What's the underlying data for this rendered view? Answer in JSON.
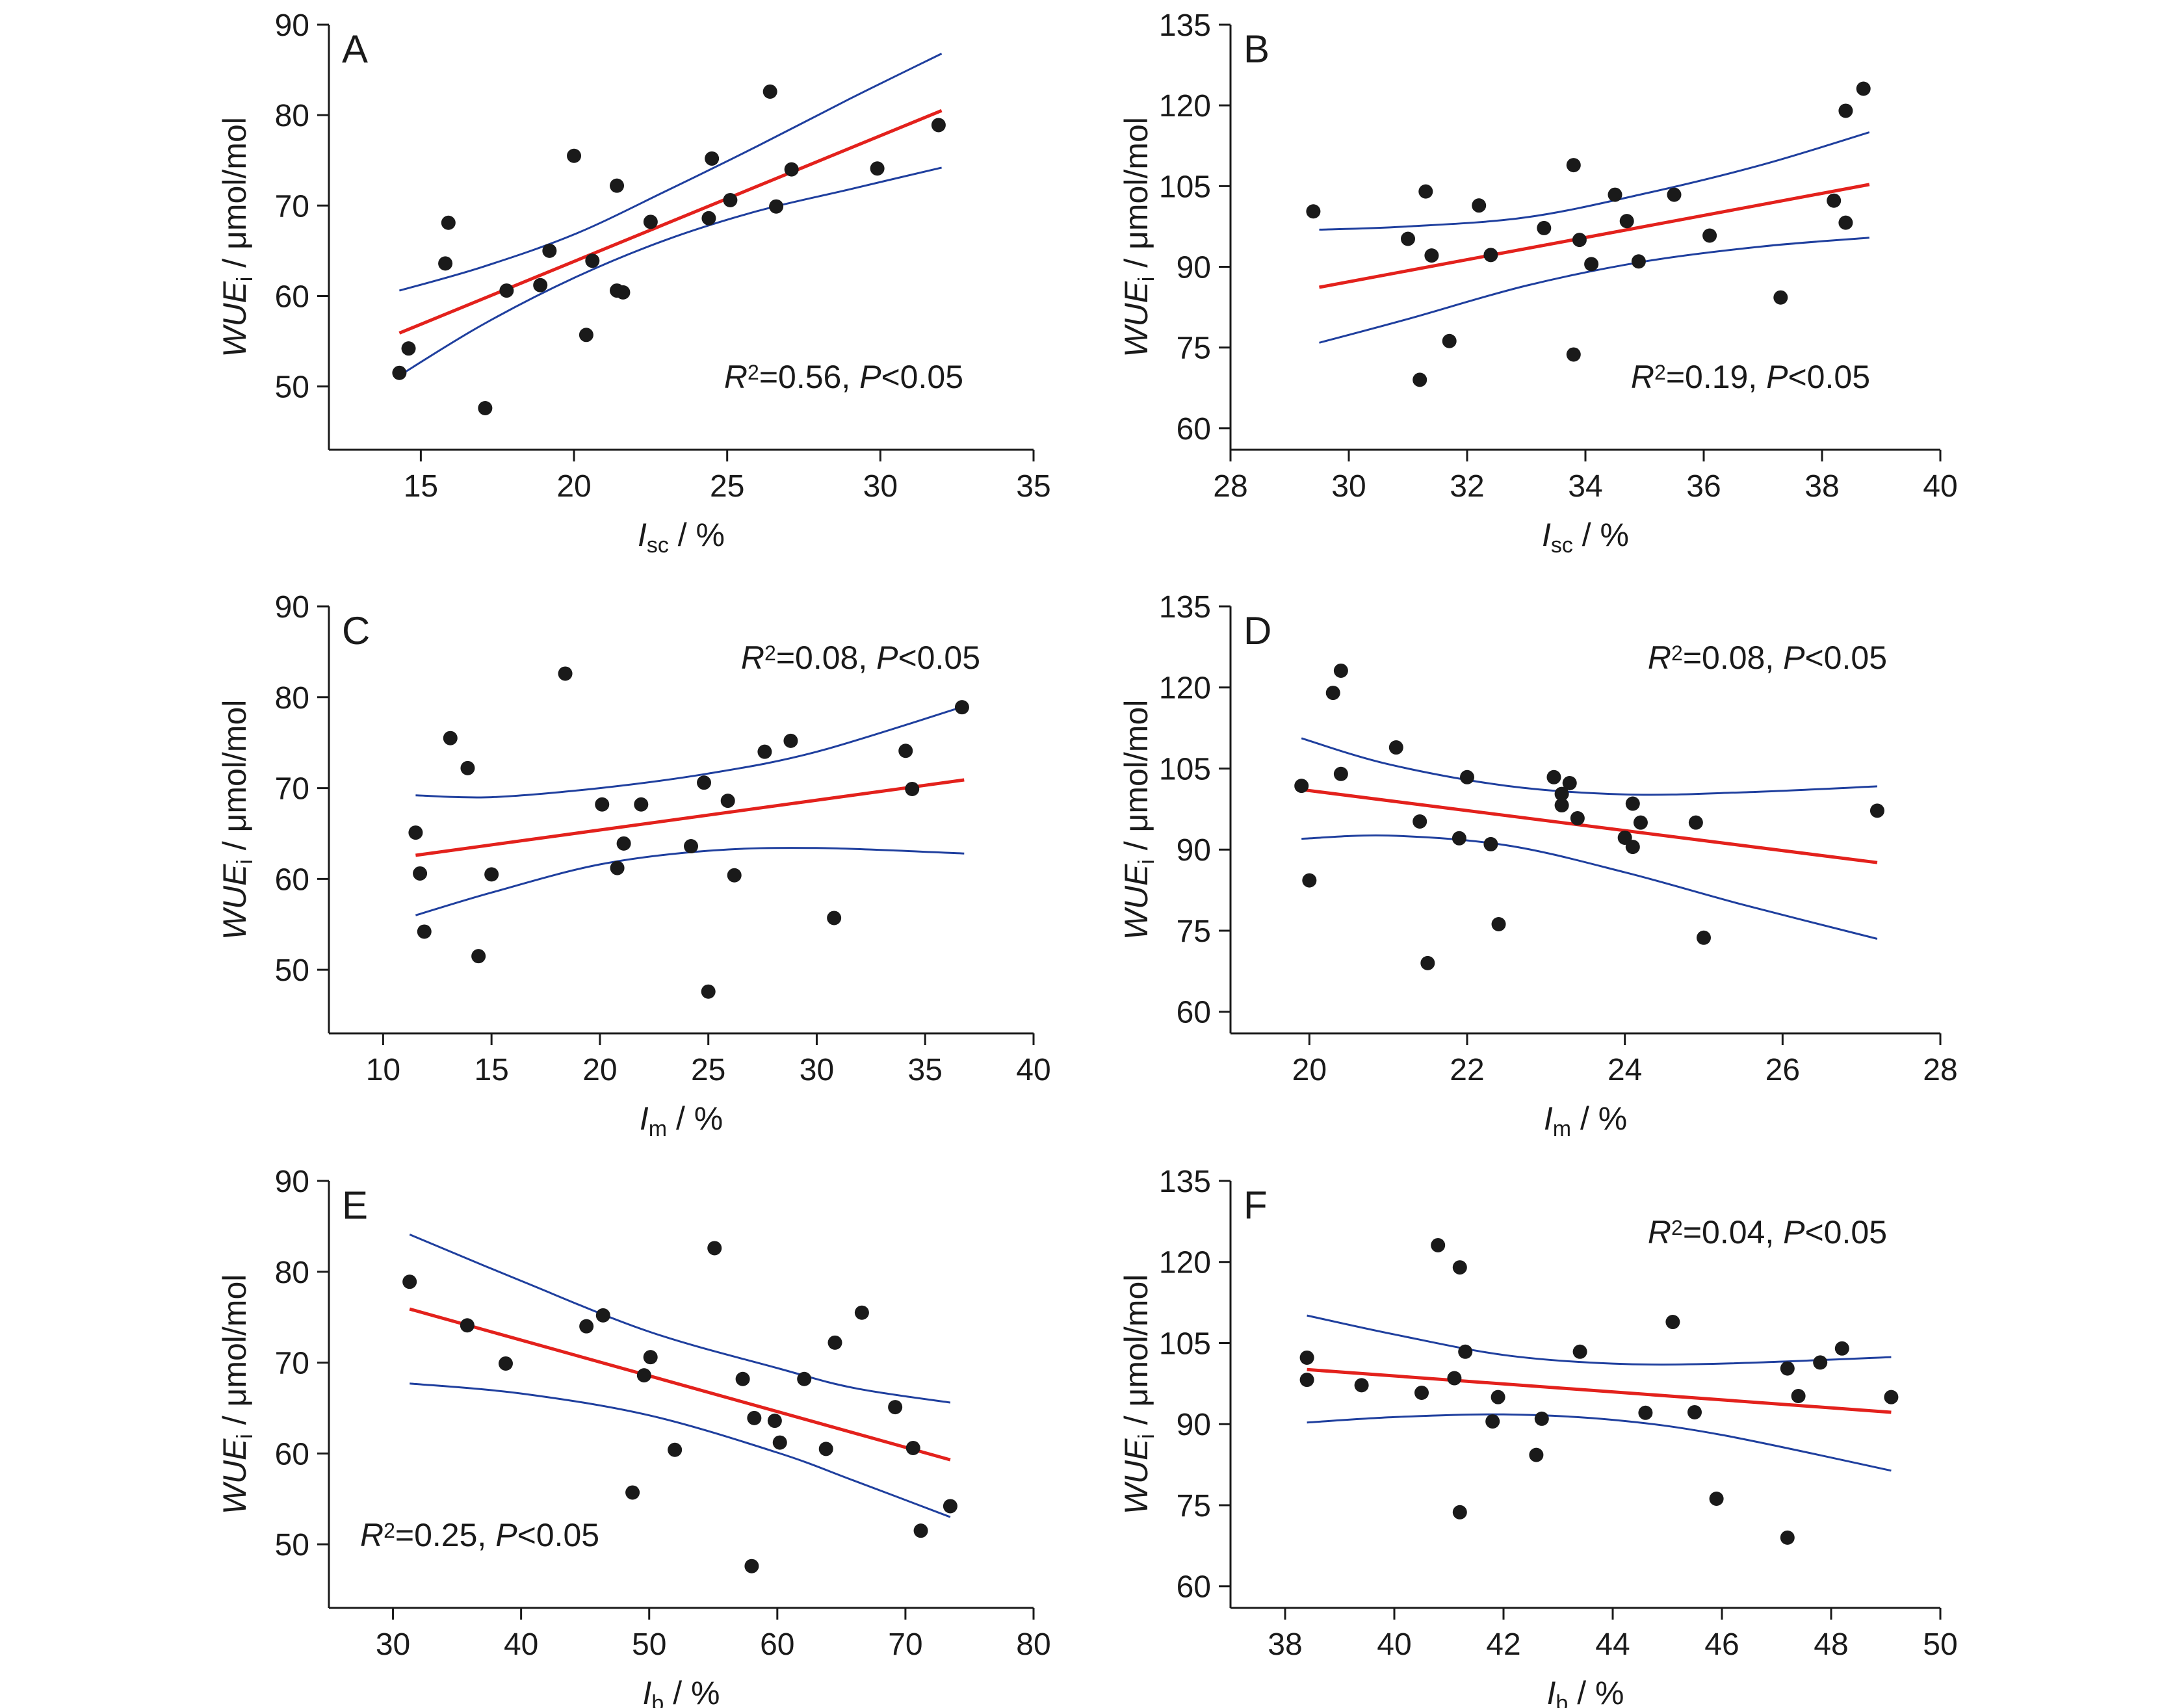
{
  "style": {
    "point_color": "#1a1a1a",
    "fit_color": "#e3211c",
    "ci_color": "#1f3f9e",
    "axis_color": "#1a1a1a"
  },
  "ylabel_main": "WUE",
  "ylabel_sub": "i",
  "ylabel_unit": " / μmol/mol",
  "xlabel_unit": " / %",
  "chart_data": [
    {
      "type": "scatter",
      "panel": "A",
      "xlabel_main": "I",
      "xlabel_sub": "sc",
      "xlim": [
        12,
        35
      ],
      "ylim": [
        43,
        90
      ],
      "xticks": [
        15,
        20,
        25,
        30,
        35
      ],
      "yticks": [
        50,
        60,
        70,
        80,
        90
      ],
      "stat": {
        "r2_label": "R",
        "r2_sup": "2",
        "r2_value": "=0.56, ",
        "p_label": "P",
        "p_value": "<0.05",
        "position": "bottom-right"
      },
      "points": [
        [
          14.3,
          51.5
        ],
        [
          14.6,
          54.2
        ],
        [
          15.8,
          63.6
        ],
        [
          15.9,
          68.1
        ],
        [
          17.1,
          47.6
        ],
        [
          17.8,
          60.6
        ],
        [
          18.9,
          61.2
        ],
        [
          19.2,
          65.0
        ],
        [
          20.0,
          75.5
        ],
        [
          20.4,
          55.7
        ],
        [
          20.6,
          63.9
        ],
        [
          21.4,
          72.2
        ],
        [
          21.4,
          60.6
        ],
        [
          21.6,
          60.4
        ],
        [
          22.5,
          68.2
        ],
        [
          24.4,
          68.6
        ],
        [
          24.5,
          75.2
        ],
        [
          25.1,
          70.6
        ],
        [
          26.4,
          82.6
        ],
        [
          26.6,
          69.9
        ],
        [
          27.1,
          74.0
        ],
        [
          29.9,
          74.1
        ],
        [
          31.9,
          78.9
        ]
      ],
      "fit": [
        [
          14.3,
          55.9
        ],
        [
          32.0,
          80.5
        ]
      ],
      "ci_upper": [
        [
          14.3,
          60.6
        ],
        [
          17.0,
          63.2
        ],
        [
          20.0,
          66.8
        ],
        [
          23.0,
          71.6
        ],
        [
          26.0,
          76.6
        ],
        [
          29.0,
          81.8
        ],
        [
          32.0,
          86.8
        ]
      ],
      "ci_lower": [
        [
          14.3,
          51.2
        ],
        [
          17.0,
          56.8
        ],
        [
          20.0,
          62.0
        ],
        [
          23.0,
          66.2
        ],
        [
          26.0,
          69.4
        ],
        [
          29.0,
          71.8
        ],
        [
          32.0,
          74.2
        ]
      ]
    },
    {
      "type": "scatter",
      "panel": "B",
      "xlabel_main": "I",
      "xlabel_sub": "sc",
      "xlim": [
        28,
        40
      ],
      "ylim": [
        56,
        135
      ],
      "xticks": [
        28,
        30,
        32,
        34,
        36,
        38,
        40
      ],
      "yticks": [
        60,
        75,
        90,
        105,
        120,
        135
      ],
      "stat": {
        "r2_label": "R",
        "r2_sup": "2",
        "r2_value": "=0.19, ",
        "p_label": "P",
        "p_value": "<0.05",
        "position": "bottom-right"
      },
      "points": [
        [
          29.4,
          100.3
        ],
        [
          31.0,
          95.2
        ],
        [
          31.2,
          69.0
        ],
        [
          31.3,
          104.0
        ],
        [
          31.4,
          92.1
        ],
        [
          31.7,
          76.2
        ],
        [
          32.2,
          101.4
        ],
        [
          32.4,
          92.2
        ],
        [
          33.3,
          97.2
        ],
        [
          33.8,
          108.9
        ],
        [
          33.8,
          73.7
        ],
        [
          33.9,
          95.0
        ],
        [
          34.1,
          90.5
        ],
        [
          34.5,
          103.4
        ],
        [
          34.7,
          98.5
        ],
        [
          34.9,
          91.0
        ],
        [
          35.5,
          103.4
        ],
        [
          36.1,
          95.8
        ],
        [
          37.3,
          84.3
        ],
        [
          38.2,
          102.3
        ],
        [
          38.4,
          119.0
        ],
        [
          38.4,
          98.2
        ],
        [
          38.7,
          123.1
        ]
      ],
      "fit": [
        [
          29.5,
          86.2
        ],
        [
          38.8,
          105.3
        ]
      ],
      "ci_upper": [
        [
          29.5,
          96.9
        ],
        [
          31.0,
          97.5
        ],
        [
          33.0,
          99.2
        ],
        [
          35.0,
          103.6
        ],
        [
          37.0,
          109.0
        ],
        [
          38.8,
          115.0
        ]
      ],
      "ci_lower": [
        [
          29.5,
          75.9
        ],
        [
          31.0,
          80.3
        ],
        [
          33.0,
          86.5
        ],
        [
          35.0,
          91.0
        ],
        [
          37.0,
          93.8
        ],
        [
          38.8,
          95.4
        ]
      ]
    },
    {
      "type": "scatter",
      "panel": "C",
      "xlabel_main": "I",
      "xlabel_sub": "m",
      "xlim": [
        7.5,
        40
      ],
      "ylim": [
        43,
        90
      ],
      "xticks": [
        10,
        15,
        20,
        25,
        30,
        35,
        40
      ],
      "yticks": [
        50,
        60,
        70,
        80,
        90
      ],
      "stat": {
        "r2_label": "R",
        "r2_sup": "2",
        "r2_value": "=0.08, ",
        "p_label": "P",
        "p_value": "<0.05",
        "position": "top-right"
      },
      "points": [
        [
          11.5,
          65.1
        ],
        [
          11.7,
          60.6
        ],
        [
          11.9,
          54.2
        ],
        [
          13.1,
          75.5
        ],
        [
          13.9,
          72.2
        ],
        [
          14.4,
          51.5
        ],
        [
          15.0,
          60.5
        ],
        [
          18.4,
          82.6
        ],
        [
          20.1,
          68.2
        ],
        [
          20.8,
          61.2
        ],
        [
          21.1,
          63.9
        ],
        [
          21.9,
          68.2
        ],
        [
          24.2,
          63.6
        ],
        [
          24.8,
          70.6
        ],
        [
          25.0,
          47.6
        ],
        [
          25.9,
          68.6
        ],
        [
          26.2,
          60.4
        ],
        [
          27.6,
          74.0
        ],
        [
          28.8,
          75.2
        ],
        [
          30.8,
          55.7
        ],
        [
          34.1,
          74.1
        ],
        [
          34.4,
          69.9
        ],
        [
          36.7,
          78.9
        ]
      ],
      "fit": [
        [
          11.5,
          62.6
        ],
        [
          36.8,
          70.9
        ]
      ],
      "ci_upper": [
        [
          11.5,
          69.2
        ],
        [
          15.0,
          69.0
        ],
        [
          20.0,
          70.0
        ],
        [
          25.0,
          71.6
        ],
        [
          30.0,
          74.0
        ],
        [
          36.8,
          79.0
        ]
      ],
      "ci_lower": [
        [
          11.5,
          56.0
        ],
        [
          15.0,
          58.5
        ],
        [
          20.0,
          61.6
        ],
        [
          25.0,
          63.1
        ],
        [
          30.0,
          63.4
        ],
        [
          36.8,
          62.8
        ]
      ]
    },
    {
      "type": "scatter",
      "panel": "D",
      "xlabel_main": "I",
      "xlabel_sub": "m",
      "xlim": [
        19,
        28
      ],
      "ylim": [
        56,
        135
      ],
      "xticks": [
        20,
        22,
        24,
        26,
        28
      ],
      "yticks": [
        60,
        75,
        90,
        105,
        120,
        135
      ],
      "stat": {
        "r2_label": "R",
        "r2_sup": "2",
        "r2_value": "=0.08, ",
        "p_label": "P",
        "p_value": "<0.05",
        "position": "top-right"
      },
      "points": [
        [
          19.9,
          101.8
        ],
        [
          20.0,
          84.3
        ],
        [
          20.3,
          119.0
        ],
        [
          20.4,
          123.1
        ],
        [
          20.4,
          104.0
        ],
        [
          21.1,
          108.9
        ],
        [
          21.4,
          95.2
        ],
        [
          21.5,
          69.0
        ],
        [
          21.9,
          92.1
        ],
        [
          22.0,
          103.4
        ],
        [
          22.3,
          91.0
        ],
        [
          22.4,
          76.2
        ],
        [
          23.1,
          103.4
        ],
        [
          23.2,
          98.2
        ],
        [
          23.2,
          100.3
        ],
        [
          23.3,
          102.3
        ],
        [
          23.4,
          95.8
        ],
        [
          24.0,
          92.2
        ],
        [
          24.1,
          90.5
        ],
        [
          24.1,
          98.5
        ],
        [
          24.2,
          95.0
        ],
        [
          24.9,
          95.0
        ],
        [
          25.0,
          73.7
        ],
        [
          27.2,
          97.2
        ]
      ],
      "fit": [
        [
          19.9,
          101.1
        ],
        [
          27.2,
          87.6
        ]
      ],
      "ci_upper": [
        [
          19.9,
          110.6
        ],
        [
          21.0,
          105.8
        ],
        [
          22.5,
          101.8
        ],
        [
          24.0,
          100.2
        ],
        [
          25.5,
          100.6
        ],
        [
          27.2,
          101.7
        ]
      ],
      "ci_lower": [
        [
          19.9,
          92.0
        ],
        [
          21.0,
          92.6
        ],
        [
          22.5,
          90.8
        ],
        [
          24.0,
          85.8
        ],
        [
          25.5,
          79.8
        ],
        [
          27.2,
          73.5
        ]
      ]
    },
    {
      "type": "scatter",
      "panel": "E",
      "xlabel_main": "I",
      "xlabel_sub": "b",
      "xlim": [
        25,
        80
      ],
      "ylim": [
        43,
        90
      ],
      "xticks": [
        30,
        40,
        50,
        60,
        70,
        80
      ],
      "yticks": [
        50,
        60,
        70,
        80,
        90
      ],
      "stat": {
        "r2_label": "R",
        "r2_sup": "2",
        "r2_value": "=0.25, ",
        "p_label": "P",
        "p_value": "<0.05",
        "position": "bottom-left"
      },
      "points": [
        [
          31.3,
          78.9
        ],
        [
          35.8,
          74.1
        ],
        [
          38.8,
          69.9
        ],
        [
          45.1,
          74.0
        ],
        [
          46.4,
          75.2
        ],
        [
          48.7,
          55.7
        ],
        [
          49.6,
          68.6
        ],
        [
          50.1,
          70.6
        ],
        [
          52.0,
          60.4
        ],
        [
          55.1,
          82.6
        ],
        [
          57.3,
          68.2
        ],
        [
          58.0,
          47.6
        ],
        [
          58.2,
          63.9
        ],
        [
          59.8,
          63.6
        ],
        [
          60.2,
          61.2
        ],
        [
          62.1,
          68.2
        ],
        [
          63.8,
          60.5
        ],
        [
          64.5,
          72.2
        ],
        [
          66.6,
          75.5
        ],
        [
          69.2,
          65.1
        ],
        [
          70.6,
          60.6
        ],
        [
          71.2,
          51.5
        ],
        [
          73.5,
          54.2
        ]
      ],
      "fit": [
        [
          31.3,
          75.9
        ],
        [
          73.5,
          59.3
        ]
      ],
      "ci_upper": [
        [
          31.3,
          84.1
        ],
        [
          40.0,
          79.0
        ],
        [
          50.0,
          73.4
        ],
        [
          60.0,
          69.4
        ],
        [
          66.0,
          67.2
        ],
        [
          73.5,
          65.6
        ]
      ],
      "ci_lower": [
        [
          31.3,
          67.7
        ],
        [
          40.0,
          66.6
        ],
        [
          50.0,
          64.2
        ],
        [
          60.0,
          60.1
        ],
        [
          66.0,
          57.0
        ],
        [
          73.5,
          53.0
        ]
      ]
    },
    {
      "type": "scatter",
      "panel": "F",
      "xlabel_main": "I",
      "xlabel_sub": "b",
      "xlim": [
        37,
        50
      ],
      "ylim": [
        56,
        135
      ],
      "xticks": [
        38,
        40,
        42,
        44,
        46,
        48,
        50
      ],
      "yticks": [
        60,
        75,
        90,
        105,
        120,
        135
      ],
      "stat": {
        "r2_label": "R",
        "r2_sup": "2",
        "r2_value": "=0.04, ",
        "p_label": "P",
        "p_value": "<0.05",
        "position": "top-right"
      },
      "points": [
        [
          38.4,
          102.3
        ],
        [
          38.4,
          98.2
        ],
        [
          39.4,
          97.2
        ],
        [
          40.5,
          95.8
        ],
        [
          40.8,
          123.1
        ],
        [
          41.1,
          98.5
        ],
        [
          41.2,
          73.7
        ],
        [
          41.2,
          119.0
        ],
        [
          41.3,
          103.4
        ],
        [
          41.8,
          90.5
        ],
        [
          41.9,
          95.0
        ],
        [
          42.6,
          84.3
        ],
        [
          42.7,
          91.0
        ],
        [
          43.4,
          103.4
        ],
        [
          44.6,
          92.1
        ],
        [
          45.1,
          108.9
        ],
        [
          45.5,
          92.2
        ],
        [
          45.9,
          76.2
        ],
        [
          47.2,
          100.3
        ],
        [
          47.2,
          69.0
        ],
        [
          47.4,
          95.2
        ],
        [
          47.8,
          101.4
        ],
        [
          48.2,
          104.0
        ],
        [
          49.1,
          95.0
        ]
      ],
      "fit": [
        [
          38.4,
          100.1
        ],
        [
          49.1,
          92.2
        ]
      ],
      "ci_upper": [
        [
          38.4,
          110.1
        ],
        [
          40.0,
          106.6
        ],
        [
          42.0,
          102.8
        ],
        [
          44.0,
          101.2
        ],
        [
          46.0,
          101.2
        ],
        [
          49.1,
          102.4
        ]
      ],
      "ci_lower": [
        [
          38.4,
          90.3
        ],
        [
          40.0,
          91.3
        ],
        [
          42.0,
          91.8
        ],
        [
          44.0,
          90.8
        ],
        [
          46.0,
          88.0
        ],
        [
          49.1,
          81.4
        ]
      ]
    }
  ]
}
